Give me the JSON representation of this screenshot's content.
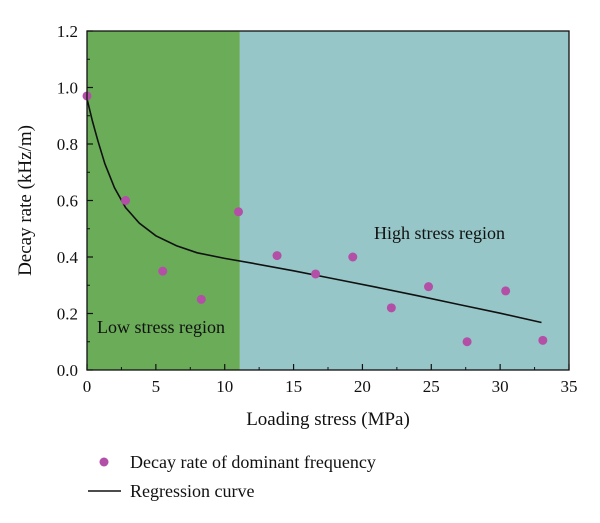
{
  "chart_data": {
    "type": "scatter",
    "title": "",
    "xlabel": "Loading stress (MPa)",
    "ylabel": "Decay rate (kHz/m)",
    "xlim": [
      0,
      35
    ],
    "ylim": [
      0,
      1.2
    ],
    "x_ticks": [
      "0",
      "5",
      "10",
      "15",
      "20",
      "25",
      "30",
      "35"
    ],
    "y_ticks": [
      "0.0",
      "0.2",
      "0.4",
      "0.6",
      "0.8",
      "1.0",
      "1.2"
    ],
    "grid": false,
    "legend_position": "bottom",
    "regions": [
      {
        "label": "Low stress region",
        "x_start": 0,
        "x_end": 11.1,
        "color": "#6aac58"
      },
      {
        "label": "High stress region",
        "x_start": 11.1,
        "x_end": 35,
        "color": "#96c6c7"
      }
    ],
    "series": [
      {
        "name": "Decay rate of dominant frequency",
        "type": "scatter",
        "color": "#b34fa6",
        "points": [
          {
            "x": 0,
            "y": 0.97
          },
          {
            "x": 2.8,
            "y": 0.6
          },
          {
            "x": 5.5,
            "y": 0.35
          },
          {
            "x": 8.3,
            "y": 0.25
          },
          {
            "x": 11.0,
            "y": 0.56
          },
          {
            "x": 13.8,
            "y": 0.405
          },
          {
            "x": 16.6,
            "y": 0.34
          },
          {
            "x": 19.3,
            "y": 0.4
          },
          {
            "x": 22.1,
            "y": 0.22
          },
          {
            "x": 24.8,
            "y": 0.295
          },
          {
            "x": 27.6,
            "y": 0.1
          },
          {
            "x": 30.4,
            "y": 0.28
          },
          {
            "x": 33.1,
            "y": 0.105
          }
        ]
      },
      {
        "name": "Regression curve",
        "type": "line",
        "color": "#111111",
        "points": [
          {
            "x": 0,
            "y": 0.96
          },
          {
            "x": 0.4,
            "y": 0.88
          },
          {
            "x": 0.8,
            "y": 0.81
          },
          {
            "x": 1.3,
            "y": 0.73
          },
          {
            "x": 2.0,
            "y": 0.645
          },
          {
            "x": 2.8,
            "y": 0.575
          },
          {
            "x": 3.8,
            "y": 0.52
          },
          {
            "x": 5.0,
            "y": 0.475
          },
          {
            "x": 6.5,
            "y": 0.44
          },
          {
            "x": 8.0,
            "y": 0.415
          },
          {
            "x": 10.0,
            "y": 0.395
          },
          {
            "x": 12.0,
            "y": 0.378
          },
          {
            "x": 15.0,
            "y": 0.351
          },
          {
            "x": 18.0,
            "y": 0.322
          },
          {
            "x": 21.0,
            "y": 0.293
          },
          {
            "x": 24.0,
            "y": 0.263
          },
          {
            "x": 27.0,
            "y": 0.232
          },
          {
            "x": 30.0,
            "y": 0.201
          },
          {
            "x": 33.0,
            "y": 0.168
          }
        ]
      }
    ]
  }
}
